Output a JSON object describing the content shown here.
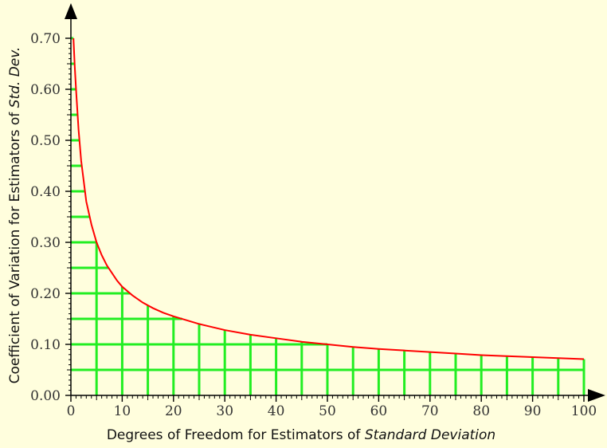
{
  "chart_data": {
    "type": "line",
    "xlabel_prefix": "Degrees of Freedom for Estimators of ",
    "xlabel_italic": "Standard Deviation",
    "ylabel_prefix": "Coefficient of Variation for Estimators of ",
    "ylabel_italic": "Std. Dev.",
    "xlim": [
      0,
      100
    ],
    "ylim": [
      0,
      0.7
    ],
    "x_ticks": [
      0,
      10,
      20,
      30,
      40,
      50,
      60,
      70,
      80,
      90,
      100
    ],
    "x_tick_labels": [
      "0",
      "10",
      "20",
      "30",
      "40",
      "50",
      "60",
      "70",
      "80",
      "90",
      "100"
    ],
    "y_ticks": [
      0,
      0.1,
      0.2,
      0.3,
      0.4,
      0.5,
      0.6,
      0.7
    ],
    "y_tick_labels": [
      "0.00",
      "0.10",
      "0.20",
      "0.30",
      "0.40",
      "0.50",
      "0.60",
      "0.70"
    ],
    "grid": "area-under-curve",
    "grid_x_step": 5,
    "grid_y_step": 0.05,
    "series": [
      {
        "x": [
          0.5,
          0.75,
          1,
          1.5,
          2,
          3,
          4,
          5,
          6,
          7,
          8,
          9,
          10,
          12,
          14,
          16,
          18,
          20,
          25,
          30,
          35,
          40,
          45,
          50,
          55,
          60,
          65,
          70,
          75,
          80,
          85,
          90,
          95,
          100
        ],
        "y": [
          0.7,
          0.645,
          0.6,
          0.52,
          0.46,
          0.38,
          0.335,
          0.3,
          0.275,
          0.255,
          0.24,
          0.225,
          0.213,
          0.196,
          0.182,
          0.171,
          0.162,
          0.155,
          0.14,
          0.128,
          0.119,
          0.112,
          0.105,
          0.1,
          0.095,
          0.091,
          0.088,
          0.085,
          0.082,
          0.079,
          0.077,
          0.075,
          0.073,
          0.071
        ],
        "color": "#ff0000"
      }
    ],
    "colors": {
      "grid": "#22ee22",
      "axis": "#000000",
      "background": "#fffedd"
    }
  }
}
